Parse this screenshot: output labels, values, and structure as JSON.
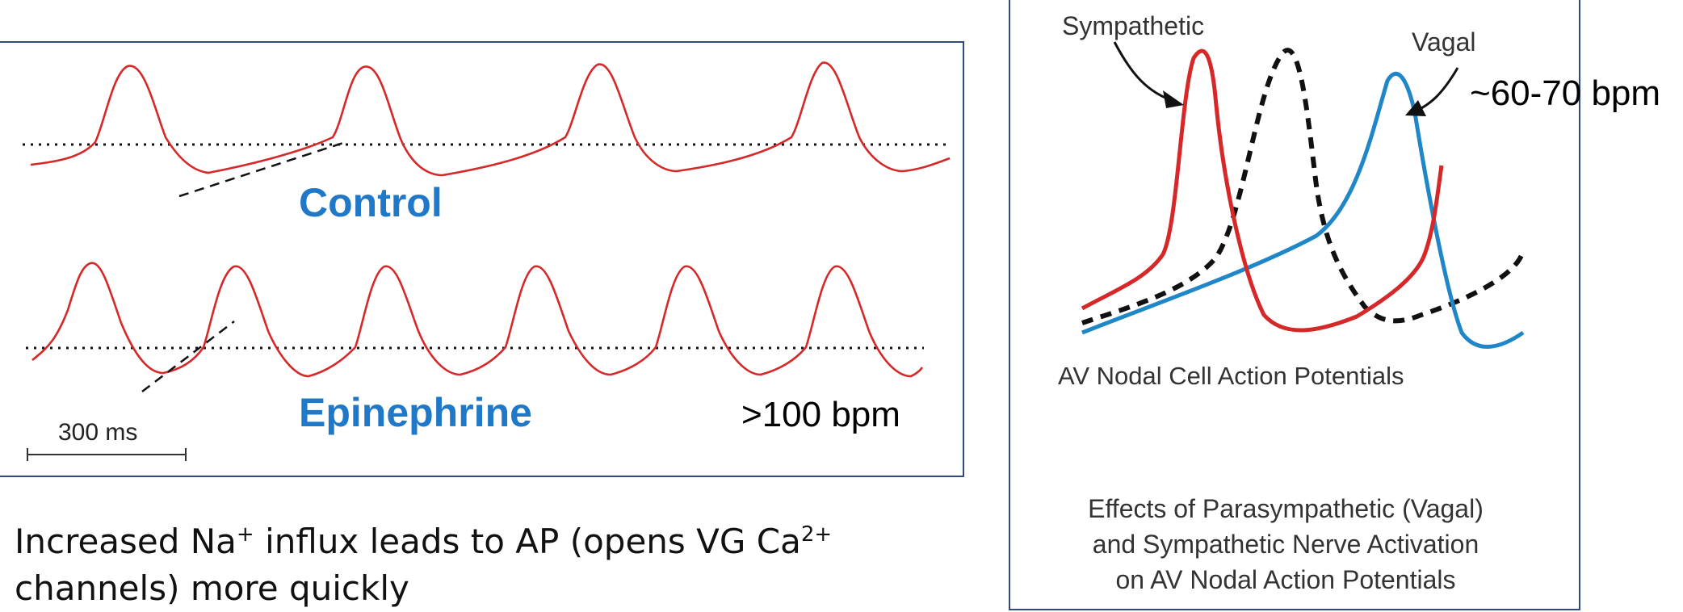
{
  "left_panel": {
    "control_label": "Control",
    "epinephrine_label": "Epinephrine",
    "rate_label": ">100 bpm",
    "scale_label": "300 ms",
    "colors": {
      "trace": "#d62828",
      "label": "#1f78c8",
      "border": "#2f4a7c"
    }
  },
  "caption": {
    "part1": "Increased Na",
    "sup1": "+",
    "part2": " influx leads to AP (opens VG Ca",
    "sup2": "2+",
    "part3": " channels) more quickly"
  },
  "right_panel": {
    "sympathetic_label": "Sympathetic",
    "vagal_label": "Vagal",
    "rate_label": "~60-70 bpm",
    "av_caption": "AV Nodal Cell Action Potentials",
    "effects_caption": [
      "Effects of Parasympathetic (Vagal)",
      "and Sympathetic Nerve Activation",
      "on AV Nodal Action Potentials"
    ],
    "colors": {
      "sympathetic": "#d62828",
      "vagal": "#1f86c8",
      "control": "#111111"
    }
  }
}
